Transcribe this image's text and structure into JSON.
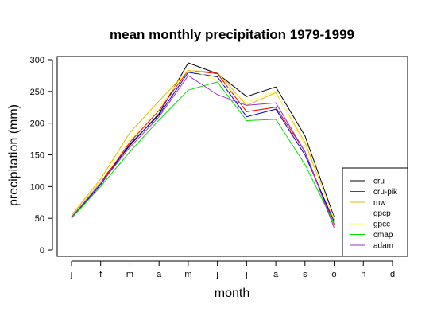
{
  "chart_data": {
    "type": "line",
    "title": "mean monthly precipitation 1979-1999",
    "xlabel": "month",
    "ylabel": "precipitation (mm)",
    "categories": [
      "j",
      "f",
      "m",
      "a",
      "m",
      "j",
      "j",
      "a",
      "s",
      "o",
      "n",
      "d"
    ],
    "yticks": [
      0,
      50,
      100,
      150,
      200,
      250,
      300
    ],
    "ylim": [
      -10,
      305
    ],
    "grid": false,
    "legend_position": "bottom-right",
    "series": [
      {
        "name": "cru",
        "color": "#000000",
        "values": [
          53,
          108,
          165,
          215,
          295,
          278,
          242,
          257,
          180,
          52,
          null,
          null
        ]
      },
      {
        "name": "cru-pik",
        "color": "#ff0000",
        "values": [
          52,
          105,
          170,
          220,
          283,
          278,
          218,
          225,
          155,
          40,
          null,
          null
        ]
      },
      {
        "name": "mw",
        "color": "#e6b800",
        "values": [
          55,
          112,
          185,
          235,
          283,
          280,
          228,
          248,
          170,
          48,
          null,
          null
        ]
      },
      {
        "name": "gpcp",
        "color": "#0000cc",
        "values": [
          50,
          103,
          167,
          213,
          280,
          273,
          210,
          222,
          150,
          45,
          null,
          null
        ]
      },
      {
        "name": "gpcc",
        "color": "#ffff66",
        "values": [
          53,
          108,
          175,
          225,
          285,
          268,
          233,
          250,
          165,
          50,
          null,
          null
        ]
      },
      {
        "name": "cmap",
        "color": "#00dd00",
        "values": [
          50,
          100,
          155,
          205,
          252,
          265,
          204,
          206,
          135,
          42,
          null,
          null
        ]
      },
      {
        "name": "adam",
        "color": "#9933cc",
        "values": [
          52,
          105,
          162,
          210,
          275,
          245,
          228,
          232,
          155,
          35,
          null,
          null
        ]
      }
    ]
  }
}
